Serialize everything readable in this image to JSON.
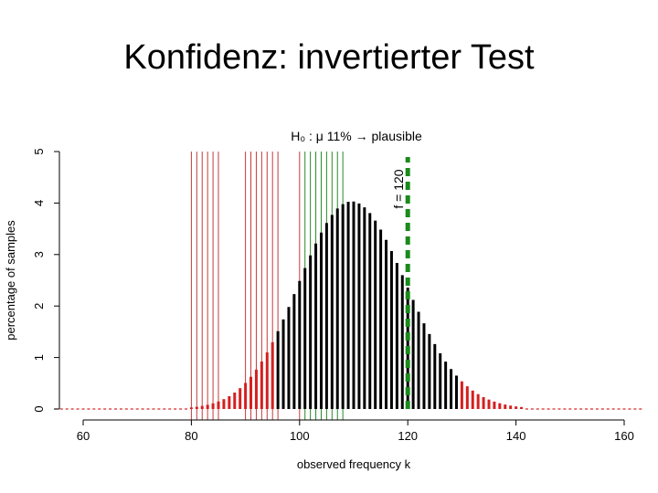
{
  "slide": {
    "title": "Konfidenz: invertierter Test"
  },
  "chart_data": {
    "type": "bar",
    "title": "H₀ : μ   11% → plausible",
    "xlabel": "observed frequency k",
    "ylabel": "percentage of samples",
    "xlim": [
      55,
      163
    ],
    "ylim": [
      0,
      5
    ],
    "x_ticks": [
      60,
      80,
      100,
      120,
      140,
      160
    ],
    "y_ticks": [
      0,
      1,
      2,
      3,
      4,
      5
    ],
    "binomial_n": 1000,
    "binomial_p": 0.11,
    "observed_line": {
      "label": "f = 120",
      "x": 120,
      "color": "#1a8a1a"
    },
    "significance_color": "#d42020",
    "bar_color": "#000000",
    "tested_h0_lines": [
      {
        "x": [
          80,
          81,
          82,
          83,
          84,
          85
        ],
        "color": "#c43a3a",
        "verdict": "rejected"
      },
      {
        "x": [
          90,
          91,
          92,
          93,
          94,
          95,
          96,
          100
        ],
        "color": "#c43a3a",
        "verdict": "rejected"
      },
      {
        "x": [
          101,
          102,
          103,
          104,
          105,
          106,
          107,
          108
        ],
        "color": "#2a8a2a",
        "verdict": "plausible"
      }
    ]
  }
}
